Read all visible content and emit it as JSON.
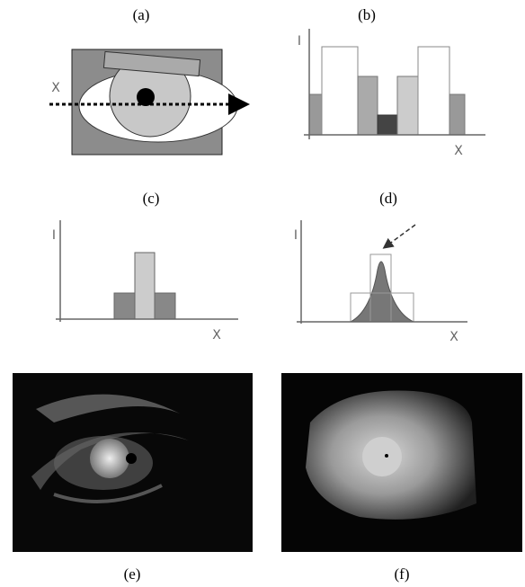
{
  "panels": [
    {
      "label": "(a)",
      "x_label": "X"
    },
    {
      "label": "(b)",
      "x_label": "X",
      "y_label": "I"
    },
    {
      "label": "(c)",
      "x_label": "X",
      "y_label": "I"
    },
    {
      "label": "(d)",
      "x_label": "X",
      "y_label": "I"
    },
    {
      "label": "(e)"
    },
    {
      "label": "(f)"
    }
  ]
}
